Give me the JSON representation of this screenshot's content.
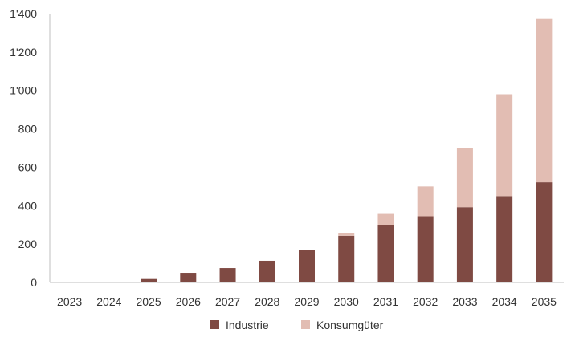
{
  "chart_data": {
    "type": "bar",
    "stacked": true,
    "categories": [
      "2023",
      "2024",
      "2025",
      "2026",
      "2027",
      "2028",
      "2029",
      "2030",
      "2031",
      "2032",
      "2033",
      "2034",
      "2035"
    ],
    "series": [
      {
        "name": "Industrie",
        "color": "#7f4a43",
        "values": [
          0,
          3,
          18,
          50,
          75,
          113,
          170,
          243,
          300,
          345,
          392,
          450,
          522
        ]
      },
      {
        "name": "Konsumgüter",
        "color": "#e2bdb3",
        "values": [
          0,
          0,
          0,
          0,
          0,
          0,
          0,
          12,
          57,
          155,
          308,
          530,
          850
        ]
      }
    ],
    "ylim": [
      0,
      1400
    ],
    "yticks": [
      0,
      200,
      400,
      600,
      800,
      1000,
      1200,
      1400
    ],
    "ytick_labels": [
      "0",
      "200",
      "400",
      "600",
      "800",
      "1'000",
      "1'200",
      "1'400"
    ],
    "legend_position": "bottom",
    "grid": false
  }
}
